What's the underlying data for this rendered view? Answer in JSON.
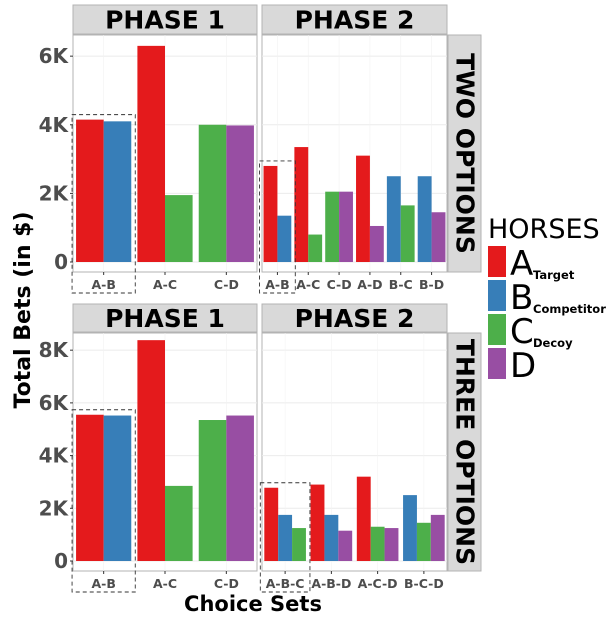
{
  "chart_data": {
    "type": "bar",
    "ylabel": "Total Bets (in $)",
    "xlabel": "Choice Sets",
    "facet_columns": [
      "PHASE 1",
      "PHASE 2"
    ],
    "facet_rows": [
      "TWO OPTIONS",
      "THREE OPTIONS"
    ],
    "legend": {
      "title": "HORSES",
      "position": "right",
      "entries": [
        {
          "key": "A",
          "letter": "A",
          "subscript": "Target",
          "color": "#E41A1C"
        },
        {
          "key": "B",
          "letter": "B",
          "subscript": "Competitor",
          "color": "#377EB8"
        },
        {
          "key": "C",
          "letter": "C",
          "subscript": "Decoy",
          "color": "#4DAF4A"
        },
        {
          "key": "D",
          "letter": "D",
          "subscript": "",
          "color": "#984EA3"
        }
      ]
    },
    "panels": [
      {
        "row": "TWO OPTIONS",
        "column": "PHASE 1",
        "ylim": [
          0,
          6500
        ],
        "yticks": [
          0,
          2000,
          4000,
          6000
        ],
        "ytick_labels": [
          "0",
          "2K",
          "4K",
          "6K"
        ],
        "highlight_group": "A-B",
        "groups": [
          {
            "label": "A-B",
            "bars": [
              {
                "horse": "A",
                "value": 4150
              },
              {
                "horse": "B",
                "value": 4100
              }
            ]
          },
          {
            "label": "A-C",
            "bars": [
              {
                "horse": "A",
                "value": 6300
              },
              {
                "horse": "C",
                "value": 1950
              }
            ]
          },
          {
            "label": "C-D",
            "bars": [
              {
                "horse": "C",
                "value": 4000
              },
              {
                "horse": "D",
                "value": 3980
              }
            ]
          }
        ]
      },
      {
        "row": "TWO OPTIONS",
        "column": "PHASE 2",
        "ylim": [
          0,
          6500
        ],
        "yticks": [
          0,
          2000,
          4000,
          6000
        ],
        "highlight_group": "A-B",
        "groups": [
          {
            "label": "A-B",
            "bars": [
              {
                "horse": "A",
                "value": 2800
              },
              {
                "horse": "B",
                "value": 1350
              }
            ]
          },
          {
            "label": "A-C",
            "bars": [
              {
                "horse": "A",
                "value": 3350
              },
              {
                "horse": "C",
                "value": 800
              }
            ]
          },
          {
            "label": "C-D",
            "bars": [
              {
                "horse": "C",
                "value": 2050
              },
              {
                "horse": "D",
                "value": 2050
              }
            ]
          },
          {
            "label": "A-D",
            "bars": [
              {
                "horse": "A",
                "value": 3100
              },
              {
                "horse": "D",
                "value": 1050
              }
            ]
          },
          {
            "label": "B-C",
            "bars": [
              {
                "horse": "B",
                "value": 2500
              },
              {
                "horse": "C",
                "value": 1650
              }
            ]
          },
          {
            "label": "B-D",
            "bars": [
              {
                "horse": "B",
                "value": 2500
              },
              {
                "horse": "D",
                "value": 1450
              }
            ]
          }
        ]
      },
      {
        "row": "THREE OPTIONS",
        "column": "PHASE 1",
        "ylim": [
          0,
          8500
        ],
        "yticks": [
          0,
          2000,
          4000,
          6000,
          8000
        ],
        "ytick_labels": [
          "0",
          "2K",
          "4K",
          "6K",
          "8K"
        ],
        "highlight_group": "A-B",
        "groups": [
          {
            "label": "A-B",
            "bars": [
              {
                "horse": "A",
                "value": 5550
              },
              {
                "horse": "B",
                "value": 5520
              }
            ]
          },
          {
            "label": "A-C",
            "bars": [
              {
                "horse": "A",
                "value": 8380
              },
              {
                "horse": "C",
                "value": 2850
              }
            ]
          },
          {
            "label": "C-D",
            "bars": [
              {
                "horse": "C",
                "value": 5350
              },
              {
                "horse": "D",
                "value": 5520
              }
            ]
          }
        ]
      },
      {
        "row": "THREE OPTIONS",
        "column": "PHASE 2",
        "ylim": [
          0,
          8500
        ],
        "yticks": [
          0,
          2000,
          4000,
          6000,
          8000
        ],
        "highlight_group": "A-B-C",
        "groups": [
          {
            "label": "A-B-C",
            "bars": [
              {
                "horse": "A",
                "value": 2780
              },
              {
                "horse": "B",
                "value": 1750
              },
              {
                "horse": "C",
                "value": 1250
              }
            ]
          },
          {
            "label": "A-B-D",
            "bars": [
              {
                "horse": "A",
                "value": 2900
              },
              {
                "horse": "B",
                "value": 1750
              },
              {
                "horse": "D",
                "value": 1150
              }
            ]
          },
          {
            "label": "A-C-D",
            "bars": [
              {
                "horse": "A",
                "value": 3200
              },
              {
                "horse": "C",
                "value": 1300
              },
              {
                "horse": "D",
                "value": 1250
              }
            ]
          },
          {
            "label": "B-C-D",
            "bars": [
              {
                "horse": "B",
                "value": 2500
              },
              {
                "horse": "C",
                "value": 1450
              },
              {
                "horse": "D",
                "value": 1750
              }
            ]
          }
        ]
      }
    ]
  }
}
